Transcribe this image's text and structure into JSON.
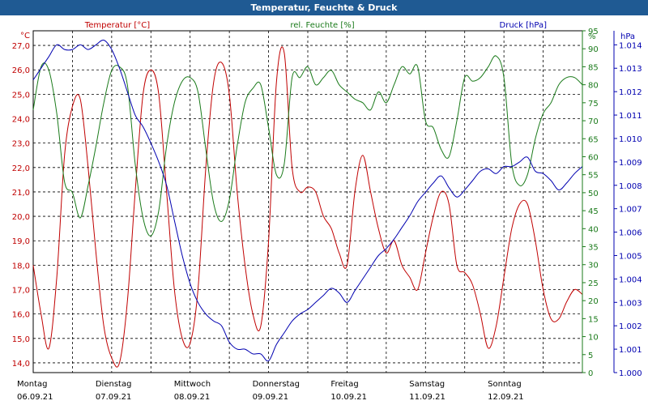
{
  "window": {
    "title": "Temperatur, Feuchte & Druck"
  },
  "chart_data": {
    "type": "line",
    "grid": true,
    "legend": "top",
    "x_day_ticks": [
      {
        "weekday": "Montag",
        "date": "06.09.21"
      },
      {
        "weekday": "Dienstag",
        "date": "07.09.21"
      },
      {
        "weekday": "Mittwoch",
        "date": "08.09.21"
      },
      {
        "weekday": "Donnerstag",
        "date": "09.09.21"
      },
      {
        "weekday": "Freitag",
        "date": "10.09.21"
      },
      {
        "weekday": "Samstag",
        "date": "11.09.21"
      },
      {
        "weekday": "Sonntag",
        "date": "12.09.21"
      }
    ],
    "x_range_days": [
      0,
      7
    ],
    "axes": {
      "temperature": {
        "unit": "°C",
        "ylim": [
          13.6,
          27.6
        ],
        "ticks": [
          "27,0",
          "26,0",
          "25,0",
          "24,0",
          "23,0",
          "22,0",
          "21,0",
          "20,0",
          "19,0",
          "18,0",
          "17,0",
          "16,0",
          "15,0",
          "14,0"
        ]
      },
      "humidity": {
        "unit": "%",
        "ylim": [
          0,
          95
        ],
        "ticks": [
          "95",
          "90",
          "85",
          "80",
          "75",
          "70",
          "65",
          "60",
          "55",
          "50",
          "45",
          "40",
          "35",
          "30",
          "25",
          "20",
          "15",
          "10",
          "5",
          "0"
        ]
      },
      "pressure": {
        "unit": "hPa",
        "ylim": [
          1.0,
          1.0146
        ],
        "ticks": [
          "1.014",
          "1.013",
          "1.012",
          "1.011",
          "1.010",
          "1.009",
          "1.008",
          "1.007",
          "1.006",
          "1.005",
          "1.004",
          "1.003",
          "1.002",
          "1.001",
          "1.000"
        ]
      }
    },
    "series": [
      {
        "name": "Temperatur [°C]",
        "axis": "temperature",
        "color": "#c00000",
        "x": [
          0,
          0.1,
          0.2,
          0.3,
          0.4,
          0.5,
          0.6,
          0.7,
          0.8,
          0.9,
          1.0,
          1.1,
          1.2,
          1.3,
          1.4,
          1.5,
          1.6,
          1.7,
          1.8,
          1.9,
          2.0,
          2.1,
          2.2,
          2.3,
          2.4,
          2.5,
          2.6,
          2.7,
          2.8,
          2.9,
          3.0,
          3.1,
          3.2,
          3.3,
          3.4,
          3.5,
          3.6,
          3.7,
          3.8,
          3.9,
          4.0,
          4.1,
          4.2,
          4.3,
          4.4,
          4.5,
          4.6,
          4.7,
          4.8,
          4.9,
          5.0,
          5.1,
          5.2,
          5.3,
          5.4,
          5.5,
          5.6,
          5.7,
          5.8,
          5.9,
          6.0,
          6.1,
          6.2,
          6.3,
          6.4,
          6.5,
          6.6,
          6.7,
          6.8,
          6.9,
          7.0
        ],
        "y": [
          18.0,
          16.0,
          14.6,
          17.5,
          22.5,
          24.5,
          24.8,
          22.0,
          18.5,
          15.5,
          14.2,
          14.0,
          16.5,
          21.0,
          25.0,
          26.0,
          25.0,
          21.0,
          17.0,
          15.0,
          14.8,
          17.0,
          22.0,
          25.5,
          26.3,
          25.0,
          21.0,
          18.0,
          16.0,
          15.5,
          19.0,
          25.5,
          26.7,
          22.0,
          21.0,
          21.2,
          21.0,
          20.0,
          19.5,
          18.5,
          18.0,
          21.0,
          22.5,
          21.0,
          19.5,
          18.5,
          19.0,
          18.0,
          17.5,
          17.0,
          18.5,
          20.0,
          21.0,
          20.5,
          18.0,
          17.7,
          17.2,
          16.0,
          14.6,
          15.5,
          17.5,
          19.5,
          20.5,
          20.5,
          19.0,
          17.0,
          15.8,
          15.8,
          16.5,
          17.0,
          16.8
        ]
      },
      {
        "name": "rel. Feuchte [%]",
        "axis": "humidity",
        "color": "#1a7a1a",
        "x": [
          0,
          0.1,
          0.2,
          0.3,
          0.4,
          0.5,
          0.6,
          0.7,
          0.8,
          0.9,
          1.0,
          1.1,
          1.2,
          1.3,
          1.4,
          1.5,
          1.6,
          1.7,
          1.8,
          1.9,
          2.0,
          2.1,
          2.2,
          2.3,
          2.4,
          2.5,
          2.6,
          2.7,
          2.8,
          2.9,
          3.0,
          3.1,
          3.2,
          3.3,
          3.4,
          3.5,
          3.6,
          3.7,
          3.8,
          3.9,
          4.0,
          4.1,
          4.2,
          4.3,
          4.4,
          4.5,
          4.6,
          4.7,
          4.8,
          4.9,
          5.0,
          5.1,
          5.2,
          5.3,
          5.4,
          5.5,
          5.6,
          5.7,
          5.8,
          5.9,
          6.0,
          6.1,
          6.2,
          6.3,
          6.4,
          6.5,
          6.6,
          6.7,
          6.8,
          6.9,
          7.0
        ],
        "y": [
          73,
          85,
          84,
          72,
          53,
          50,
          43,
          52,
          63,
          75,
          84,
          85,
          80,
          58,
          43,
          38,
          45,
          63,
          75,
          81,
          82,
          78,
          62,
          47,
          42,
          48,
          63,
          75,
          79,
          80,
          68,
          55,
          58,
          82,
          82,
          85,
          80,
          82,
          84,
          80,
          78,
          76,
          75,
          73,
          78,
          75,
          80,
          85,
          83,
          85,
          70,
          68,
          62,
          60,
          70,
          82,
          81,
          82,
          85,
          88,
          82,
          58,
          52,
          55,
          65,
          72,
          75,
          80,
          82,
          82,
          80
        ]
      },
      {
        "name": "Druck [hPa]",
        "axis": "pressure",
        "color": "#0000b0",
        "x": [
          0,
          0.1,
          0.2,
          0.3,
          0.4,
          0.5,
          0.6,
          0.7,
          0.8,
          0.9,
          1.0,
          1.1,
          1.2,
          1.3,
          1.4,
          1.5,
          1.6,
          1.7,
          1.8,
          1.9,
          2.0,
          2.1,
          2.2,
          2.3,
          2.4,
          2.5,
          2.6,
          2.7,
          2.8,
          2.9,
          3.0,
          3.1,
          3.2,
          3.3,
          3.4,
          3.5,
          3.6,
          3.7,
          3.8,
          3.9,
          4.0,
          4.1,
          4.2,
          4.3,
          4.4,
          4.5,
          4.6,
          4.7,
          4.8,
          4.9,
          5.0,
          5.1,
          5.2,
          5.3,
          5.4,
          5.5,
          5.6,
          5.7,
          5.8,
          5.9,
          6.0,
          6.1,
          6.2,
          6.3,
          6.4,
          6.5,
          6.6,
          6.7,
          6.8,
          6.9,
          7.0
        ],
        "y": [
          1.0125,
          1.013,
          1.0135,
          1.014,
          1.0138,
          1.0138,
          1.014,
          1.0138,
          1.014,
          1.0142,
          1.0138,
          1.013,
          1.012,
          1.011,
          1.0105,
          1.0098,
          1.009,
          1.008,
          1.0065,
          1.005,
          1.0038,
          1.003,
          1.0025,
          1.0022,
          1.002,
          1.0013,
          1.001,
          1.001,
          1.0008,
          1.0008,
          1.0005,
          1.0012,
          1.0017,
          1.0022,
          1.0025,
          1.0027,
          1.003,
          1.0033,
          1.0036,
          1.0034,
          1.003,
          1.0035,
          1.004,
          1.0045,
          1.005,
          1.0053,
          1.0057,
          1.0062,
          1.0067,
          1.0073,
          1.0077,
          1.0081,
          1.0084,
          1.0079,
          1.0075,
          1.0078,
          1.0082,
          1.0086,
          1.0087,
          1.0085,
          1.0088,
          1.0088,
          1.009,
          1.0092,
          1.0086,
          1.0085,
          1.0082,
          1.0078,
          1.0081,
          1.0085,
          1.0088
        ]
      }
    ]
  }
}
